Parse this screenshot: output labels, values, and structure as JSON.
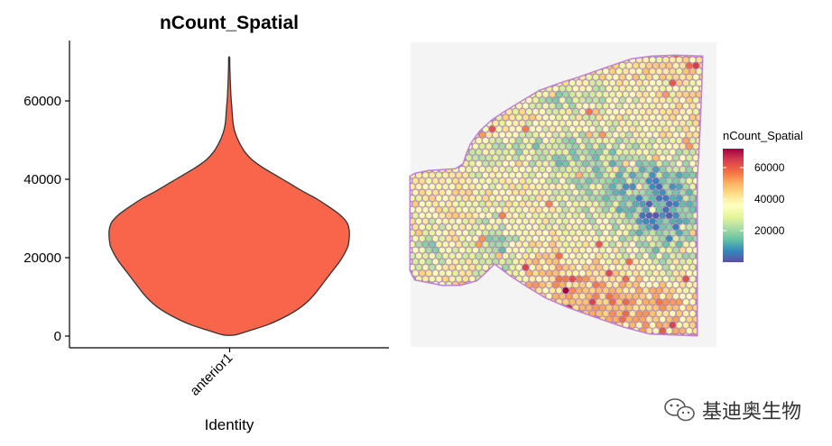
{
  "chart_data": [
    {
      "type": "violin",
      "title": "nCount_Spatial",
      "xlabel": "Identity",
      "ylabel": "",
      "categories": [
        "anterior1"
      ],
      "ylim": [
        0,
        72000
      ],
      "yticks": [
        0,
        20000,
        40000,
        60000
      ],
      "ytick_labels": [
        "0",
        "20000",
        "40000",
        "60000"
      ],
      "fill_color": "#F8654A",
      "density": [
        {
          "y": 300,
          "w": 0.05
        },
        {
          "y": 1500,
          "w": 0.18
        },
        {
          "y": 3000,
          "w": 0.33
        },
        {
          "y": 5000,
          "w": 0.47
        },
        {
          "y": 7000,
          "w": 0.58
        },
        {
          "y": 9000,
          "w": 0.66
        },
        {
          "y": 11000,
          "w": 0.72
        },
        {
          "y": 13000,
          "w": 0.77
        },
        {
          "y": 15000,
          "w": 0.82
        },
        {
          "y": 17000,
          "w": 0.87
        },
        {
          "y": 19000,
          "w": 0.92
        },
        {
          "y": 21000,
          "w": 0.96
        },
        {
          "y": 23000,
          "w": 0.99
        },
        {
          "y": 25000,
          "w": 1.0
        },
        {
          "y": 27000,
          "w": 1.0
        },
        {
          "y": 29000,
          "w": 0.98
        },
        {
          "y": 31000,
          "w": 0.92
        },
        {
          "y": 33000,
          "w": 0.83
        },
        {
          "y": 35000,
          "w": 0.73
        },
        {
          "y": 37000,
          "w": 0.61
        },
        {
          "y": 39000,
          "w": 0.5
        },
        {
          "y": 41000,
          "w": 0.39
        },
        {
          "y": 43000,
          "w": 0.28
        },
        {
          "y": 45000,
          "w": 0.19
        },
        {
          "y": 47000,
          "w": 0.13
        },
        {
          "y": 49000,
          "w": 0.09
        },
        {
          "y": 51000,
          "w": 0.06
        },
        {
          "y": 53000,
          "w": 0.04
        },
        {
          "y": 55000,
          "w": 0.03
        },
        {
          "y": 57000,
          "w": 0.025
        },
        {
          "y": 59000,
          "w": 0.02
        },
        {
          "y": 61000,
          "w": 0.015
        },
        {
          "y": 63000,
          "w": 0.012
        },
        {
          "y": 65000,
          "w": 0.009
        },
        {
          "y": 67000,
          "w": 0.007
        },
        {
          "y": 69000,
          "w": 0.005
        },
        {
          "y": 71000,
          "w": 0.004
        }
      ]
    },
    {
      "type": "spatial_heatmap",
      "title": "",
      "legend_title": "nCount_Spatial",
      "legend_ticks": [
        20000,
        40000,
        60000
      ],
      "legend_tick_labels": [
        "20000",
        "40000",
        "60000"
      ],
      "scale_range": [
        0,
        72000
      ],
      "colormap": [
        "#5E4FA2",
        "#3288BD",
        "#66C2A5",
        "#ABDDA4",
        "#E6F598",
        "#FFFFBF",
        "#FEE08B",
        "#FDAE61",
        "#F46D43",
        "#D53E4F",
        "#9E0142"
      ],
      "legend_position": "right"
    }
  ],
  "watermark": {
    "icon": "wechat-icon",
    "text": "基迪奥生物"
  }
}
